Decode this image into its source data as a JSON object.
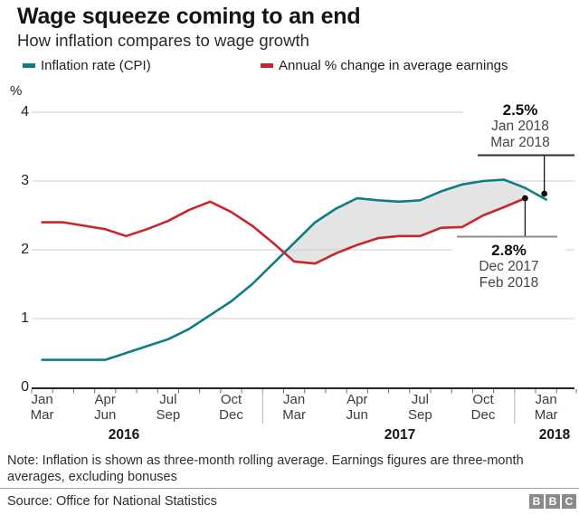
{
  "header": {
    "title": "Wage squeeze coming to an end",
    "subtitle": "How inflation compares to wage growth"
  },
  "legend": [
    {
      "label": "Inflation rate (CPI)",
      "color": "#0e7d84"
    },
    {
      "label": "Annual % change in average earnings",
      "color": "#c8262d"
    }
  ],
  "chart_data": {
    "type": "line",
    "y_axis": {
      "unit": "%",
      "ticks": [
        0,
        1,
        2,
        3,
        4
      ],
      "range": [
        0,
        4
      ],
      "grid": true
    },
    "x_axis": {
      "tick_labels": [
        {
          "top": "Jan",
          "bottom": "Mar",
          "index": 0
        },
        {
          "top": "Apr",
          "bottom": "Jun",
          "index": 3
        },
        {
          "top": "Jul",
          "bottom": "Sep",
          "index": 6
        },
        {
          "top": "Oct",
          "bottom": "Dec",
          "index": 9
        },
        {
          "top": "Jan",
          "bottom": "Mar",
          "index": 12
        },
        {
          "top": "Apr",
          "bottom": "Jun",
          "index": 15
        },
        {
          "top": "Jul",
          "bottom": "Sep",
          "index": 18
        },
        {
          "top": "Oct",
          "bottom": "Dec",
          "index": 21
        },
        {
          "top": "Jan",
          "bottom": "Mar",
          "index": 24
        }
      ],
      "years": [
        "2016",
        "2017",
        "2018"
      ],
      "note": "Three-month rolling windows, monthly steps from Jan-Mar 2016 to Jan-Mar 2018"
    },
    "series": [
      {
        "name": "Inflation rate (CPI)",
        "color": "#0e7d84",
        "values": [
          0.4,
          0.4,
          0.4,
          0.4,
          0.5,
          0.6,
          0.7,
          0.85,
          1.05,
          1.25,
          1.5,
          1.8,
          2.1,
          2.4,
          2.6,
          2.75,
          2.72,
          2.7,
          2.72,
          2.85,
          2.95,
          3.0,
          3.02,
          2.9,
          2.73
        ]
      },
      {
        "name": "Annual % change in average earnings",
        "color": "#c8262d",
        "values": [
          2.4,
          2.4,
          2.35,
          2.3,
          2.2,
          2.3,
          2.42,
          2.58,
          2.7,
          2.55,
          2.35,
          2.1,
          1.83,
          1.8,
          1.95,
          2.07,
          2.17,
          2.2,
          2.2,
          2.32,
          2.33,
          2.5,
          2.62,
          2.75,
          null
        ]
      }
    ],
    "shaded_gap_color": "#e4e4e4"
  },
  "annotations": {
    "top": {
      "value": "2.5%",
      "date1": "Jan 2018",
      "date2": "Mar 2018"
    },
    "bottom": {
      "value": "2.8%",
      "date1": "Dec 2017",
      "date2": "Feb 2018"
    }
  },
  "footer": {
    "note": "Note: Inflation is shown as three-month rolling average. Earnings figures are three-month averages, excluding bonuses",
    "source": "Source: Office for National Statistics",
    "logo_letters": [
      "B",
      "B",
      "C"
    ]
  }
}
